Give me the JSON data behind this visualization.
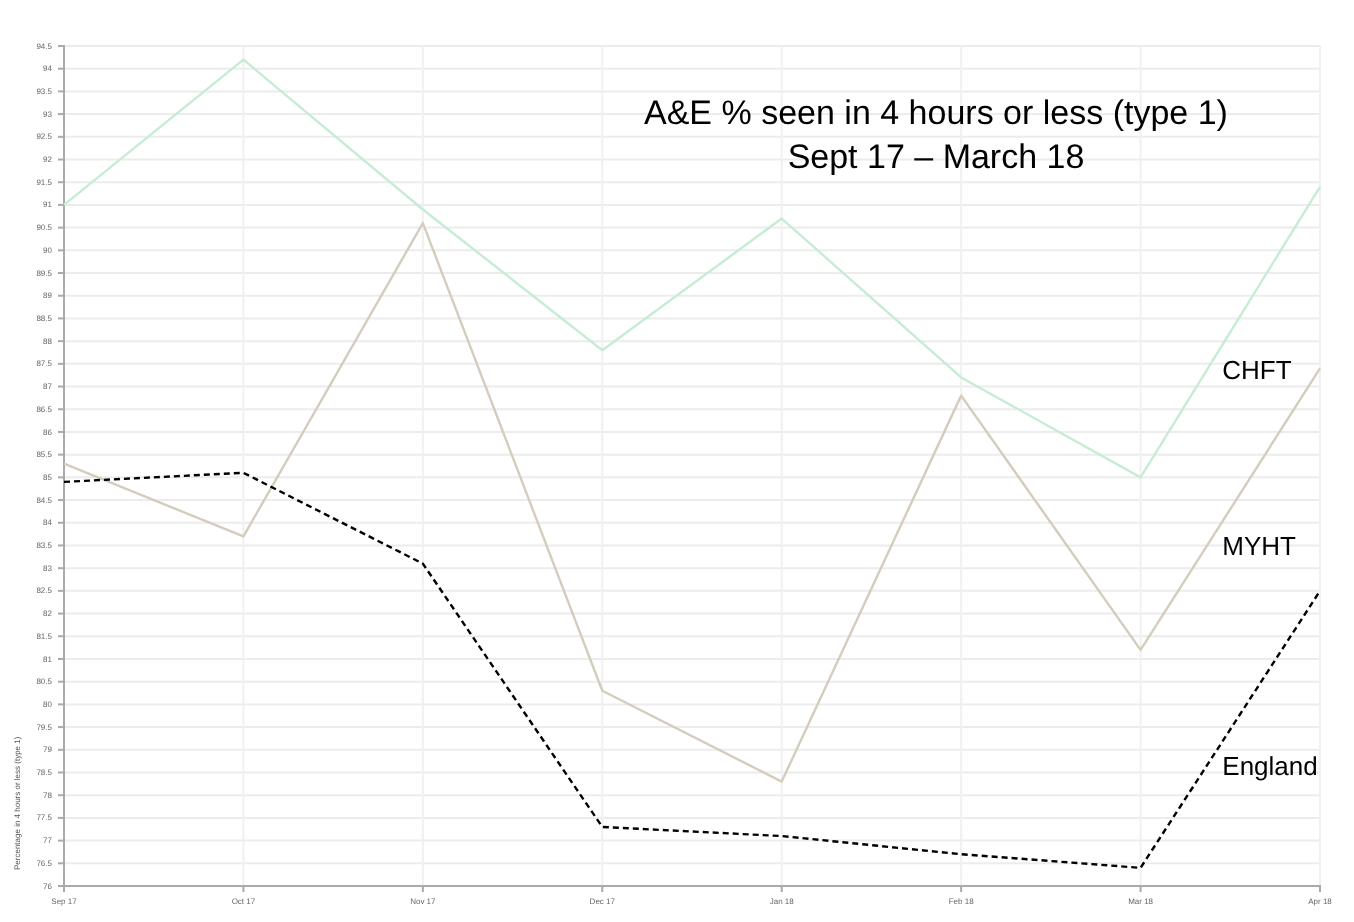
{
  "chart_data": {
    "type": "line",
    "title": "A&E % seen in 4 hours or less (type 1)",
    "subtitle": "Sept 17 – March 18",
    "ylabel": "Percentage in 4 hours or less (type 1)",
    "categories": [
      "Sep 17",
      "Oct 17",
      "Nov 17",
      "Dec 17",
      "Jan 18",
      "Feb 18",
      "Mar 18",
      "Apr 18"
    ],
    "series": [
      {
        "name": "CHFT",
        "color": "#c6ecd4",
        "values": [
          91.0,
          94.2,
          90.9,
          87.8,
          90.7,
          87.2,
          85.0,
          91.4
        ]
      },
      {
        "name": "MYHT",
        "color": "#d4cdbd",
        "values": [
          85.3,
          83.7,
          90.6,
          80.3,
          78.3,
          86.8,
          81.2,
          87.4
        ]
      },
      {
        "name": "England",
        "color": "#000000",
        "line_style": "dashed",
        "values": [
          84.9,
          85.1,
          83.1,
          77.3,
          77.1,
          76.7,
          76.4,
          82.5
        ]
      }
    ],
    "ylim": [
      76,
      94.5
    ],
    "yticks": [
      76,
      76.5,
      77,
      77.5,
      78,
      78.5,
      79,
      79.5,
      80,
      80.5,
      81,
      81.5,
      82,
      82.5,
      83,
      83.5,
      84,
      84.5,
      85,
      85.5,
      86,
      86.5,
      87,
      87.5,
      88,
      88.5,
      89,
      89.5,
      90,
      90.5,
      91,
      91.5,
      92,
      92.5,
      93,
      93.5,
      94,
      94.5
    ],
    "grid": true,
    "legend": false,
    "marker": "none"
  }
}
